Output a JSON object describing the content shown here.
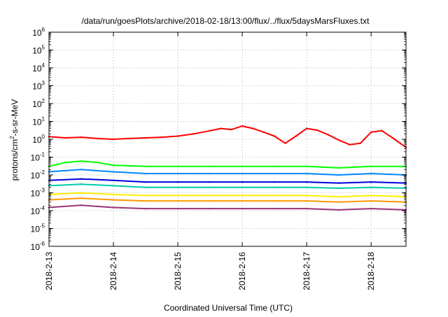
{
  "chart_data": {
    "type": "line",
    "title": "/data/run/goesPlots/archive/2018-02-18/13:00/flux/../flux/5daysMarsFluxes.txt",
    "xlabel": "Coordinated Universal Time (UTC)",
    "ylabel": "protons/cm2-s-sr-MeV",
    "ylabel_main": "protons/cm",
    "ylabel_sup": "2",
    "ylabel_tail": "-s-sr-MeV",
    "y_scale": "log",
    "ylim_exp": [
      -6,
      6
    ],
    "yticks": [
      {
        "base": "10",
        "exp": "-6"
      },
      {
        "base": "10",
        "exp": "-5"
      },
      {
        "base": "10",
        "exp": "-4"
      },
      {
        "base": "10",
        "exp": "-3"
      },
      {
        "base": "10",
        "exp": "-2"
      },
      {
        "base": "10",
        "exp": "-1"
      },
      {
        "base": "10",
        "exp": "0"
      },
      {
        "base": "10",
        "exp": "1"
      },
      {
        "base": "10",
        "exp": "2"
      },
      {
        "base": "10",
        "exp": "3"
      },
      {
        "base": "10",
        "exp": "4"
      },
      {
        "base": "10",
        "exp": "5"
      },
      {
        "base": "10",
        "exp": "6"
      }
    ],
    "xlim": [
      "2018-02-13T00:00",
      "2018-02-18T13:00"
    ],
    "xticks": [
      "2018-2-13",
      "2018-2-14",
      "2018-2-15",
      "2018-2-16",
      "2018-2-17",
      "2018-2-18"
    ],
    "xtick_dates": [
      "2018-02-13",
      "2018-02-14",
      "2018-02-15",
      "2018-02-16",
      "2018-02-17",
      "2018-02-18"
    ],
    "grid": true,
    "series": [
      {
        "color": "#ff0000",
        "x": [
          "2018-02-13T00:00",
          "2018-02-13T06:00",
          "2018-02-13T12:00",
          "2018-02-13T18:00",
          "2018-02-14T00:00",
          "2018-02-14T06:00",
          "2018-02-14T12:00",
          "2018-02-14T18:00",
          "2018-02-15T00:00",
          "2018-02-15T06:00",
          "2018-02-15T12:00",
          "2018-02-15T16:00",
          "2018-02-15T20:00",
          "2018-02-16T00:00",
          "2018-02-16T04:00",
          "2018-02-16T08:00",
          "2018-02-16T12:00",
          "2018-02-16T16:00",
          "2018-02-16T20:00",
          "2018-02-17T00:00",
          "2018-02-17T04:00",
          "2018-02-17T08:00",
          "2018-02-17T12:00",
          "2018-02-17T16:00",
          "2018-02-17T20:00",
          "2018-02-18T00:00",
          "2018-02-18T04:00",
          "2018-02-18T08:00",
          "2018-02-18T13:00"
        ],
        "y": [
          1.4,
          1.2,
          1.3,
          1.1,
          1.0,
          1.1,
          1.2,
          1.3,
          1.5,
          2.0,
          3.0,
          4.0,
          3.5,
          5.5,
          4.0,
          2.5,
          1.5,
          0.6,
          1.5,
          4.0,
          3.2,
          1.8,
          0.9,
          0.5,
          0.6,
          2.5,
          3.0,
          1.2,
          0.35
        ]
      },
      {
        "color": "#00ff00",
        "x": [
          "2018-02-13T00:00",
          "2018-02-13T06:00",
          "2018-02-13T12:00",
          "2018-02-13T18:00",
          "2018-02-14T00:00",
          "2018-02-14T12:00",
          "2018-02-15T00:00",
          "2018-02-15T12:00",
          "2018-02-16T00:00",
          "2018-02-16T12:00",
          "2018-02-17T00:00",
          "2018-02-17T12:00",
          "2018-02-18T00:00",
          "2018-02-18T13:00"
        ],
        "y": [
          0.03,
          0.05,
          0.06,
          0.05,
          0.035,
          0.03,
          0.03,
          0.03,
          0.03,
          0.03,
          0.03,
          0.025,
          0.03,
          0.03
        ]
      },
      {
        "color": "#0088ff",
        "x": [
          "2018-02-13T00:00",
          "2018-02-13T12:00",
          "2018-02-14T00:00",
          "2018-02-14T12:00",
          "2018-02-15T00:00",
          "2018-02-15T12:00",
          "2018-02-16T00:00",
          "2018-02-16T12:00",
          "2018-02-17T00:00",
          "2018-02-17T12:00",
          "2018-02-18T00:00",
          "2018-02-18T13:00"
        ],
        "y": [
          0.015,
          0.02,
          0.015,
          0.012,
          0.012,
          0.012,
          0.012,
          0.012,
          0.012,
          0.01,
          0.012,
          0.01
        ]
      },
      {
        "color": "#0000dd",
        "x": [
          "2018-02-13T00:00",
          "2018-02-13T12:00",
          "2018-02-14T00:00",
          "2018-02-14T12:00",
          "2018-02-15T00:00",
          "2018-02-15T12:00",
          "2018-02-16T00:00",
          "2018-02-16T12:00",
          "2018-02-17T00:00",
          "2018-02-17T12:00",
          "2018-02-18T00:00",
          "2018-02-18T13:00"
        ],
        "y": [
          0.005,
          0.006,
          0.005,
          0.004,
          0.004,
          0.004,
          0.004,
          0.004,
          0.004,
          0.0035,
          0.004,
          0.0035
        ]
      },
      {
        "color": "#00ccaa",
        "x": [
          "2018-02-13T00:00",
          "2018-02-13T12:00",
          "2018-02-14T00:00",
          "2018-02-14T12:00",
          "2018-02-15T00:00",
          "2018-02-15T12:00",
          "2018-02-16T00:00",
          "2018-02-16T12:00",
          "2018-02-17T00:00",
          "2018-02-17T12:00",
          "2018-02-18T00:00",
          "2018-02-18T13:00"
        ],
        "y": [
          0.0025,
          0.003,
          0.0025,
          0.002,
          0.002,
          0.002,
          0.002,
          0.002,
          0.002,
          0.0018,
          0.002,
          0.0018
        ]
      },
      {
        "color": "#ffee00",
        "x": [
          "2018-02-13T00:00",
          "2018-02-13T12:00",
          "2018-02-14T00:00",
          "2018-02-14T12:00",
          "2018-02-15T00:00",
          "2018-02-15T12:00",
          "2018-02-16T00:00",
          "2018-02-16T12:00",
          "2018-02-17T00:00",
          "2018-02-17T12:00",
          "2018-02-18T00:00",
          "2018-02-18T13:00"
        ],
        "y": [
          0.0008,
          0.001,
          0.0008,
          0.0007,
          0.0007,
          0.0007,
          0.0007,
          0.0007,
          0.0007,
          0.0006,
          0.0007,
          0.0006
        ]
      },
      {
        "color": "#ff9900",
        "x": [
          "2018-02-13T00:00",
          "2018-02-13T12:00",
          "2018-02-14T00:00",
          "2018-02-14T12:00",
          "2018-02-15T00:00",
          "2018-02-15T12:00",
          "2018-02-16T00:00",
          "2018-02-16T12:00",
          "2018-02-17T00:00",
          "2018-02-17T12:00",
          "2018-02-18T00:00",
          "2018-02-18T13:00"
        ],
        "y": [
          0.0004,
          0.0005,
          0.0004,
          0.00035,
          0.00035,
          0.00035,
          0.00035,
          0.00035,
          0.00035,
          0.0003,
          0.00035,
          0.0003
        ]
      },
      {
        "color": "#993377",
        "x": [
          "2018-02-13T00:00",
          "2018-02-13T12:00",
          "2018-02-14T00:00",
          "2018-02-14T12:00",
          "2018-02-15T00:00",
          "2018-02-15T12:00",
          "2018-02-16T00:00",
          "2018-02-16T12:00",
          "2018-02-17T00:00",
          "2018-02-17T12:00",
          "2018-02-18T00:00",
          "2018-02-18T13:00"
        ],
        "y": [
          0.00015,
          0.0002,
          0.00015,
          0.00013,
          0.00013,
          0.00013,
          0.00013,
          0.00013,
          0.00013,
          0.00011,
          0.00013,
          0.00011
        ]
      }
    ]
  }
}
